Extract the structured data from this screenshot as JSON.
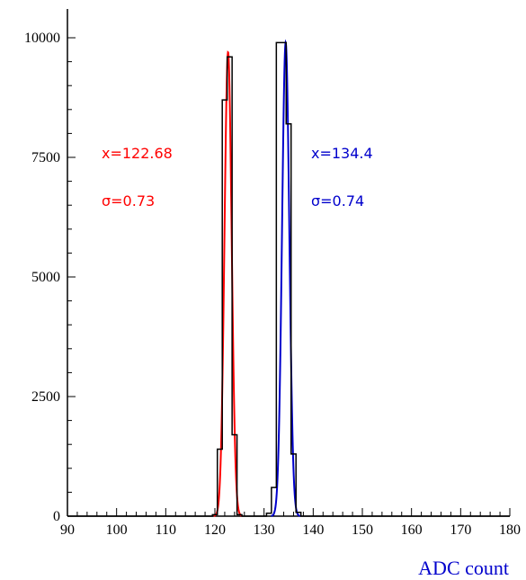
{
  "chart_data": {
    "type": "line",
    "title": "",
    "xlabel": "ADC count",
    "ylabel": "",
    "xlim": [
      90,
      180
    ],
    "ylim": [
      0,
      10000
    ],
    "x_ticks": [
      90,
      100,
      110,
      120,
      130,
      140,
      150,
      160,
      170,
      180
    ],
    "y_ticks": [
      0,
      2500,
      5000,
      7500,
      10000
    ],
    "grid": false,
    "colors": {
      "hist": "#000000",
      "fit1": "#ff0000",
      "fit2": "#0000cc",
      "xlabel": "#0000cc"
    },
    "histogram": {
      "bin_width": 1,
      "bins": [
        {
          "x": 120,
          "count": 30
        },
        {
          "x": 121,
          "count": 1400
        },
        {
          "x": 122,
          "count": 8700
        },
        {
          "x": 123,
          "count": 9600
        },
        {
          "x": 124,
          "count": 1700
        },
        {
          "x": 125,
          "count": 30
        },
        {
          "x": 131,
          "count": 60
        },
        {
          "x": 132,
          "count": 600
        },
        {
          "x": 133,
          "count": 9900
        },
        {
          "x": 134,
          "count": 9900
        },
        {
          "x": 135,
          "count": 8200
        },
        {
          "x": 136,
          "count": 1300
        },
        {
          "x": 137,
          "count": 80
        }
      ]
    },
    "fits": [
      {
        "mean": 122.68,
        "sigma": 0.73,
        "amplitude": 9700,
        "color": "#ff0000"
      },
      {
        "mean": 134.4,
        "sigma": 0.74,
        "amplitude": 9900,
        "color": "#0000cc"
      }
    ],
    "annotations": [
      {
        "text": "x=122.68",
        "color": "#ff0000"
      },
      {
        "text": "σ=0.73",
        "color": "#ff0000"
      },
      {
        "text": "x=134.4",
        "color": "#0000cc"
      },
      {
        "text": "σ=0.74",
        "color": "#0000cc"
      }
    ]
  }
}
